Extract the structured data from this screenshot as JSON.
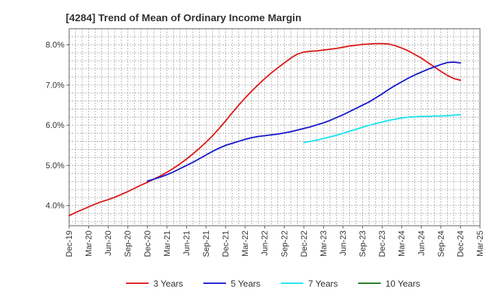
{
  "chart_data": {
    "type": "line",
    "title": "[4284]  Trend of Mean of Ordinary Income Margin",
    "xlabel": "",
    "ylabel": "",
    "x_ticks": [
      "Dec-19",
      "Mar-20",
      "Jun-20",
      "Sep-20",
      "Dec-20",
      "Mar-21",
      "Jun-21",
      "Sep-21",
      "Dec-21",
      "Mar-22",
      "Jun-22",
      "Sep-22",
      "Dec-22",
      "Mar-23",
      "Jun-23",
      "Sep-23",
      "Dec-23",
      "Mar-24",
      "Jun-24",
      "Sep-24",
      "Dec-24",
      "Mar-25"
    ],
    "y_ticks": [
      "4.0%",
      "5.0%",
      "6.0%",
      "7.0%",
      "8.0%"
    ],
    "ylim": [
      3.5,
      8.4
    ],
    "grid": true,
    "legend_position": "bottom",
    "series": [
      {
        "name": "3 Years",
        "color": "#dd1c1c",
        "x": [
          "Dec-19",
          "Jan-20",
          "Feb-20",
          "Mar-20",
          "Apr-20",
          "May-20",
          "Jun-20",
          "Jul-20",
          "Aug-20",
          "Sep-20",
          "Oct-20",
          "Nov-20",
          "Dec-20",
          "Jan-21",
          "Feb-21",
          "Mar-21",
          "Apr-21",
          "May-21",
          "Jun-21",
          "Jul-21",
          "Aug-21",
          "Sep-21",
          "Oct-21",
          "Nov-21",
          "Dec-21",
          "Jan-22",
          "Feb-22",
          "Mar-22",
          "Apr-22",
          "May-22",
          "Jun-22",
          "Jul-22",
          "Aug-22",
          "Sep-22",
          "Oct-22",
          "Nov-22",
          "Dec-22",
          "Jan-23",
          "Feb-23",
          "Mar-23",
          "Apr-23",
          "May-23",
          "Jun-23",
          "Jul-23",
          "Aug-23",
          "Sep-23",
          "Oct-23",
          "Nov-23",
          "Dec-23",
          "Jan-24",
          "Feb-24",
          "Mar-24",
          "Apr-24",
          "May-24",
          "Jun-24",
          "Jul-24",
          "Aug-24",
          "Sep-24",
          "Oct-24",
          "Nov-24",
          "Dec-24"
        ],
        "values": [
          3.75,
          3.83,
          3.9,
          3.97,
          4.04,
          4.1,
          4.15,
          4.21,
          4.28,
          4.35,
          4.43,
          4.51,
          4.58,
          4.66,
          4.74,
          4.83,
          4.93,
          5.04,
          5.16,
          5.29,
          5.43,
          5.58,
          5.74,
          5.92,
          6.11,
          6.31,
          6.5,
          6.68,
          6.85,
          7.01,
          7.16,
          7.3,
          7.43,
          7.55,
          7.67,
          7.77,
          7.82,
          7.84,
          7.85,
          7.87,
          7.89,
          7.91,
          7.94,
          7.97,
          7.99,
          8.01,
          8.02,
          8.03,
          8.03,
          8.02,
          7.98,
          7.92,
          7.85,
          7.76,
          7.67,
          7.56,
          7.45,
          7.34,
          7.24,
          7.16,
          7.12
        ]
      },
      {
        "name": "5 Years",
        "color": "#1c1ccc",
        "x": [
          "Dec-20",
          "Jan-21",
          "Feb-21",
          "Mar-21",
          "Apr-21",
          "May-21",
          "Jun-21",
          "Jul-21",
          "Aug-21",
          "Sep-21",
          "Oct-21",
          "Nov-21",
          "Dec-21",
          "Jan-22",
          "Feb-22",
          "Mar-22",
          "Apr-22",
          "May-22",
          "Jun-22",
          "Jul-22",
          "Aug-22",
          "Sep-22",
          "Oct-22",
          "Nov-22",
          "Dec-22",
          "Jan-23",
          "Feb-23",
          "Mar-23",
          "Apr-23",
          "May-23",
          "Jun-23",
          "Jul-23",
          "Aug-23",
          "Sep-23",
          "Oct-23",
          "Nov-23",
          "Dec-23",
          "Jan-24",
          "Feb-24",
          "Mar-24",
          "Apr-24",
          "May-24",
          "Jun-24",
          "Jul-24",
          "Aug-24",
          "Sep-24",
          "Oct-24",
          "Nov-24",
          "Dec-24"
        ],
        "values": [
          4.61,
          4.66,
          4.71,
          4.77,
          4.84,
          4.92,
          5.0,
          5.08,
          5.17,
          5.26,
          5.35,
          5.43,
          5.5,
          5.55,
          5.6,
          5.65,
          5.69,
          5.72,
          5.74,
          5.76,
          5.78,
          5.81,
          5.84,
          5.88,
          5.92,
          5.96,
          6.01,
          6.06,
          6.12,
          6.19,
          6.26,
          6.34,
          6.42,
          6.5,
          6.58,
          6.68,
          6.78,
          6.89,
          6.99,
          7.08,
          7.17,
          7.25,
          7.32,
          7.39,
          7.45,
          7.51,
          7.56,
          7.57,
          7.55
        ]
      },
      {
        "name": "7 Years",
        "color": "#1ce4ee",
        "x": [
          "Dec-22",
          "Jan-23",
          "Feb-23",
          "Mar-23",
          "Apr-23",
          "May-23",
          "Jun-23",
          "Jul-23",
          "Aug-23",
          "Sep-23",
          "Oct-23",
          "Nov-23",
          "Dec-23",
          "Jan-24",
          "Feb-24",
          "Mar-24",
          "Apr-24",
          "May-24",
          "Jun-24",
          "Jul-24",
          "Aug-24",
          "Sep-24",
          "Oct-24",
          "Nov-24",
          "Dec-24"
        ],
        "values": [
          5.57,
          5.6,
          5.63,
          5.67,
          5.71,
          5.75,
          5.8,
          5.85,
          5.9,
          5.95,
          6.0,
          6.04,
          6.08,
          6.12,
          6.15,
          6.18,
          6.2,
          6.21,
          6.22,
          6.22,
          6.23,
          6.23,
          6.24,
          6.25,
          6.26
        ]
      },
      {
        "name": "10 Years",
        "color": "#1c7a1c",
        "x": [],
        "values": []
      }
    ]
  }
}
